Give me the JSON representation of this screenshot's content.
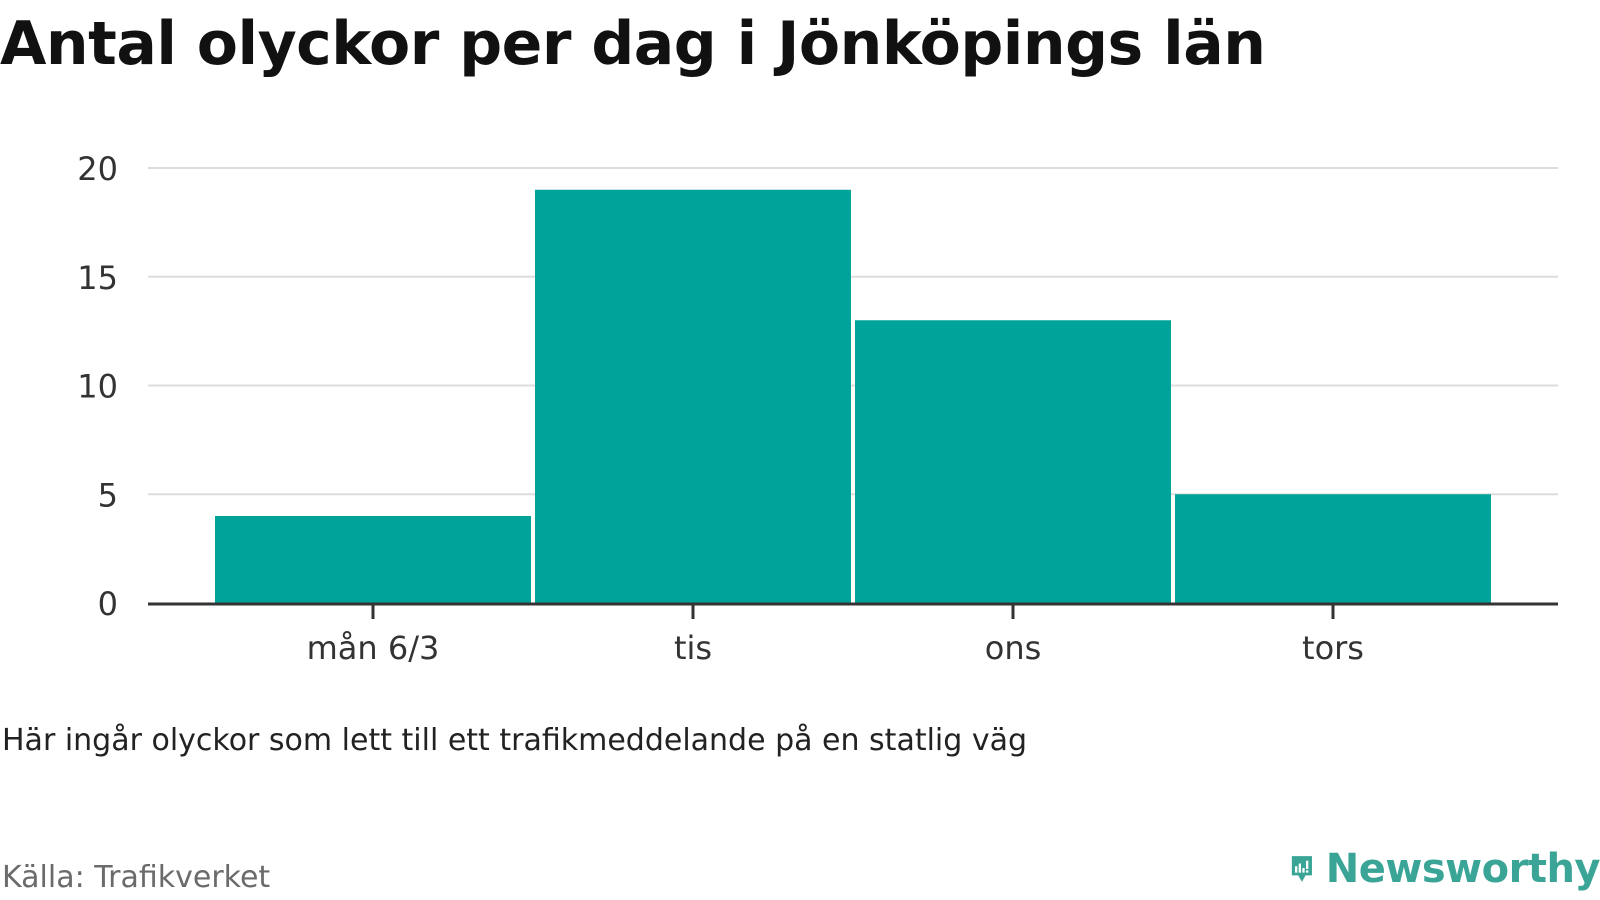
{
  "title": "Antal olyckor per dag i Jönköpings län",
  "note": "Här ingår olyckor som lett till ett trafikmeddelande på en statlig väg",
  "source": "Källa: Trafikverket",
  "logo": {
    "text": "Newsworthy",
    "icon": "newsworthy-logo-icon"
  },
  "colors": {
    "bar": "#00a39a",
    "grid": "#dddddd",
    "axis": "#333333",
    "text": "#333333",
    "brand": "#3aa597"
  },
  "chart_data": {
    "type": "bar",
    "categories": [
      "mån 6/3",
      "tis",
      "ons",
      "tors"
    ],
    "values": [
      4,
      19,
      13,
      5
    ],
    "ylim": [
      0,
      20
    ],
    "yticks": [
      0,
      5,
      10,
      15,
      20
    ],
    "grid": true,
    "legend": "none"
  }
}
